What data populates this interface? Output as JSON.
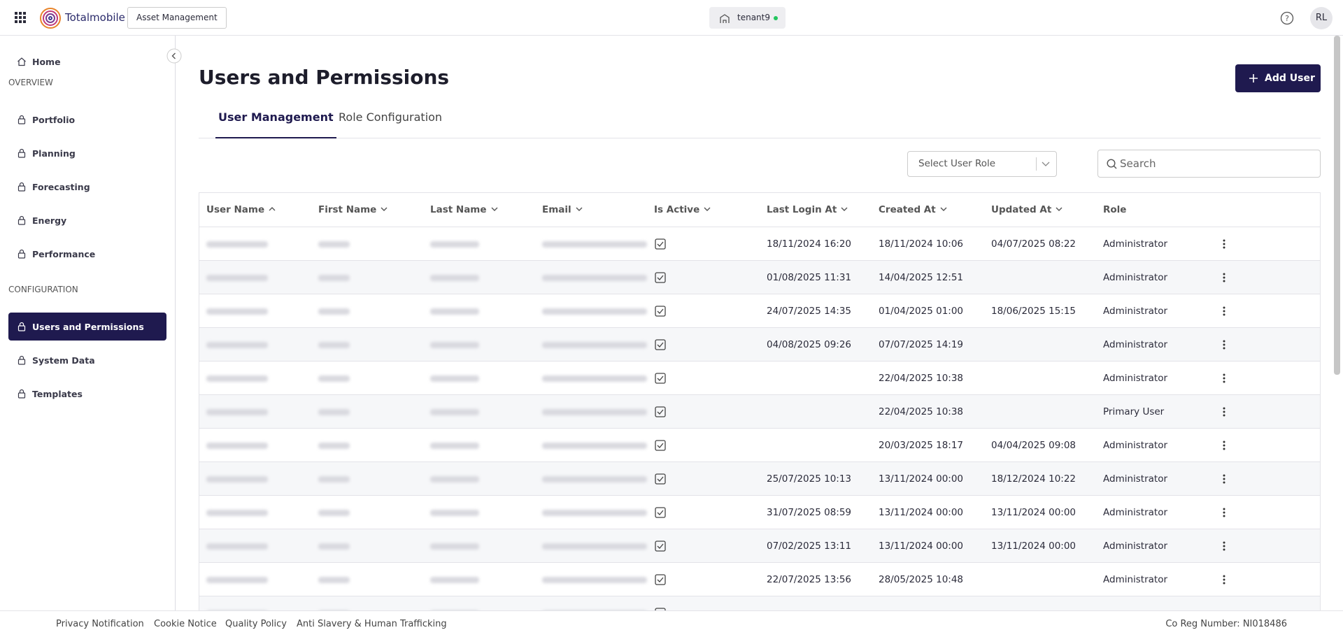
{
  "header": {
    "app_name": "Totalmobile",
    "module": "Asset Management",
    "tenant": "tenant9",
    "avatar": "RL"
  },
  "sidebar": {
    "home": "Home",
    "sections": [
      {
        "title": "OVERVIEW",
        "items": [
          {
            "label": "Portfolio",
            "active": false
          },
          {
            "label": "Planning",
            "active": false
          },
          {
            "label": "Forecasting",
            "active": false
          },
          {
            "label": "Energy",
            "active": false
          },
          {
            "label": "Performance",
            "active": false
          }
        ]
      },
      {
        "title": "CONFIGURATION",
        "items": [
          {
            "label": "Users and Permissions",
            "active": true
          },
          {
            "label": "System Data",
            "active": false
          },
          {
            "label": "Templates",
            "active": false
          }
        ]
      }
    ]
  },
  "page": {
    "title": "Users and Permissions",
    "add_button": "Add User",
    "tabs": [
      "User Management",
      "Role Configuration"
    ],
    "active_tab": 0,
    "role_filter_placeholder": "Select User Role",
    "search_placeholder": "Search"
  },
  "table": {
    "columns": [
      "User Name",
      "First Name",
      "Last Name",
      "Email",
      "Is Active",
      "Last Login At",
      "Created At",
      "Updated At",
      "Role"
    ],
    "rows": [
      {
        "is_active": true,
        "last_login_at": "18/11/2024 16:20",
        "created_at": "18/11/2024 10:06",
        "updated_at": "04/07/2025 08:22",
        "role": "Administrator"
      },
      {
        "is_active": true,
        "last_login_at": "01/08/2025 11:31",
        "created_at": "14/04/2025 12:51",
        "updated_at": null,
        "role": "Administrator"
      },
      {
        "is_active": true,
        "last_login_at": "24/07/2025 14:35",
        "created_at": "01/04/2025 01:00",
        "updated_at": "18/06/2025 15:15",
        "role": "Administrator"
      },
      {
        "is_active": true,
        "last_login_at": "04/08/2025 09:26",
        "created_at": "07/07/2025 14:19",
        "updated_at": null,
        "role": "Administrator"
      },
      {
        "is_active": true,
        "last_login_at": null,
        "created_at": "22/04/2025 10:38",
        "updated_at": null,
        "role": "Administrator"
      },
      {
        "is_active": true,
        "last_login_at": null,
        "created_at": "22/04/2025 10:38",
        "updated_at": null,
        "role": "Primary User"
      },
      {
        "is_active": true,
        "last_login_at": null,
        "created_at": "20/03/2025 18:17",
        "updated_at": "04/04/2025 09:08",
        "role": "Administrator"
      },
      {
        "is_active": true,
        "last_login_at": "25/07/2025 10:13",
        "created_at": "13/11/2024 00:00",
        "updated_at": "18/12/2024 10:22",
        "role": "Administrator"
      },
      {
        "is_active": true,
        "last_login_at": "31/07/2025 08:59",
        "created_at": "13/11/2024 00:00",
        "updated_at": "13/11/2024 00:00",
        "role": "Administrator"
      },
      {
        "is_active": true,
        "last_login_at": "07/02/2025 13:11",
        "created_at": "13/11/2024 00:00",
        "updated_at": "13/11/2024 00:00",
        "role": "Administrator"
      },
      {
        "is_active": true,
        "last_login_at": "22/07/2025 13:56",
        "created_at": "28/05/2025 10:48",
        "updated_at": null,
        "role": "Administrator"
      }
    ]
  },
  "footer": {
    "links": [
      "Privacy Notification",
      "Cookie Notice",
      "Quality Policy",
      "Anti Slavery & Human Trafficking"
    ],
    "reg": "Co Reg Number: NI018486"
  }
}
